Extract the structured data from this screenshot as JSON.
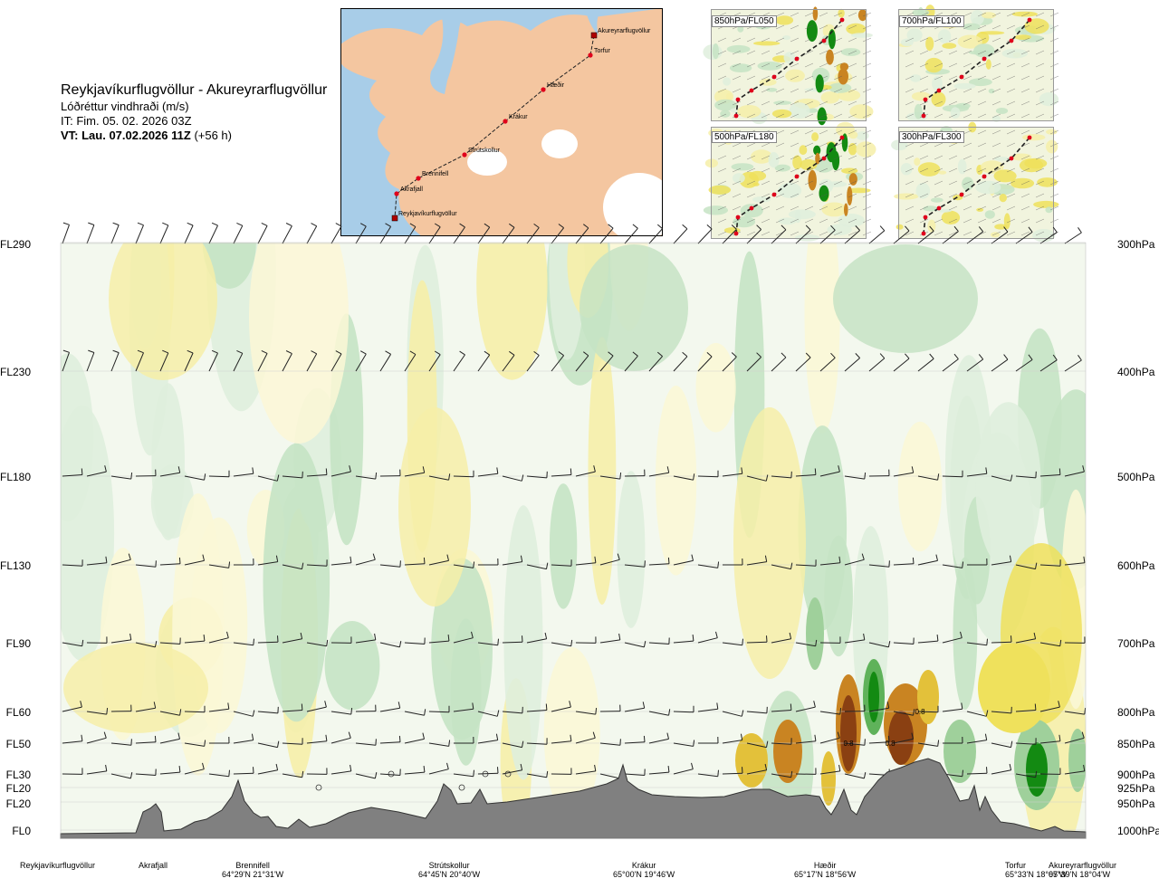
{
  "header": {
    "route": "Reykjavíkurflugvöllur - Akureyrarflugvöllur",
    "variable": "Lóðréttur vindhraði (m/s)",
    "issue_time": "IT: Fim. 05. 02. 2026 03Z",
    "valid_prefix": "VT: Lau. 07.02.2026 11Z",
    "valid_offset": "(+56 h)"
  },
  "map": {
    "points": [
      {
        "name": "Akureyrarflugvöllur",
        "kind": "airport"
      },
      {
        "name": "Torfur",
        "kind": "waypoint"
      },
      {
        "name": "Hæðir",
        "kind": "waypoint"
      },
      {
        "name": "Krákur",
        "kind": "waypoint"
      },
      {
        "name": "Strútskollur",
        "kind": "waypoint"
      },
      {
        "name": "Brennifell",
        "kind": "waypoint"
      },
      {
        "name": "Akrafjall",
        "kind": "waypoint"
      },
      {
        "name": "Reykjavíkurflugvöllur",
        "kind": "airport"
      }
    ],
    "colors": {
      "sea": "#a8cde8",
      "land": "#f4c6a0",
      "ice": "#ffffff",
      "route": "#222222",
      "point": "#e0001b"
    }
  },
  "panels": [
    {
      "label": "850hPa/FL050"
    },
    {
      "label": "700hPa/FL100"
    },
    {
      "label": "500hPa/FL180"
    },
    {
      "label": "300hPa/FL300"
    }
  ],
  "levels_left": [
    "FL290",
    "FL230",
    "FL180",
    "FL130",
    "FL90",
    "FL60",
    "FL50",
    "FL30",
    "FL20",
    "FL20",
    "FL0"
  ],
  "levels_right": [
    "300hPa",
    "400hPa",
    "500hPa",
    "600hPa",
    "700hPa",
    "800hPa",
    "850hPa",
    "900hPa",
    "925hPa",
    "950hPa",
    "1000hPa"
  ],
  "locations": [
    {
      "name": "Reykjavíkurflugvöllur",
      "coord": ""
    },
    {
      "name": "Akrafjall",
      "coord": ""
    },
    {
      "name": "Brennifell",
      "coord": "64°29'N 21°31'W"
    },
    {
      "name": "Strútskollur",
      "coord": "64°45'N 20°40'W"
    },
    {
      "name": "Krákur",
      "coord": "65°00'N 19°46'W"
    },
    {
      "name": "Hæðir",
      "coord": "65°17'N 18°56'W"
    },
    {
      "name": "Torfur",
      "coord": "65°33'N 18°07'W"
    },
    {
      "name": "Akureyrarflugvöllur",
      "coord": "65°39'N 18°04'W"
    }
  ],
  "contour_labels": [
    "0.8",
    "0.8",
    "0.8",
    "0.8"
  ],
  "chart_data": {
    "type": "heatmap",
    "title": "Reykjavíkurflugvöllur - Akureyrarflugvöllur",
    "variable": "Lóðréttur vindhraði (m/s)",
    "x_categories": [
      "Reykjavíkurflugvöllur",
      "Akrafjall",
      "Brennifell",
      "Strútskollur",
      "Krákur",
      "Hæðir",
      "Torfur",
      "Akureyrarflugvöllur"
    ],
    "y_levels_hPa": [
      300,
      400,
      500,
      600,
      700,
      800,
      850,
      900,
      925,
      950,
      1000
    ],
    "y_levels_FL": [
      "FL290",
      "FL230",
      "FL180",
      "FL130",
      "FL90",
      "FL60",
      "FL50",
      "FL30",
      "FL20",
      "FL20",
      "FL0"
    ],
    "color_scale": {
      "updraft": [
        "#dfeedd",
        "#c5e3c4",
        "#9fd09b",
        "#5fb25a",
        "#138a12"
      ],
      "downdraft": [
        "#fbf7d6",
        "#f6eea8",
        "#efe15c",
        "#e3c13a",
        "#c98422",
        "#8a4012"
      ],
      "terrain": "#808080"
    },
    "features": [
      {
        "location": "Hæðir",
        "level_hPa": 850,
        "kind": "downdraft",
        "max_value": 0.8
      },
      {
        "location": "Hæðir",
        "level_hPa": 800,
        "kind": "downdraft",
        "max_value": 0.8
      },
      {
        "location": "Torfur",
        "level_hPa": 900,
        "kind": "updraft"
      }
    ]
  }
}
